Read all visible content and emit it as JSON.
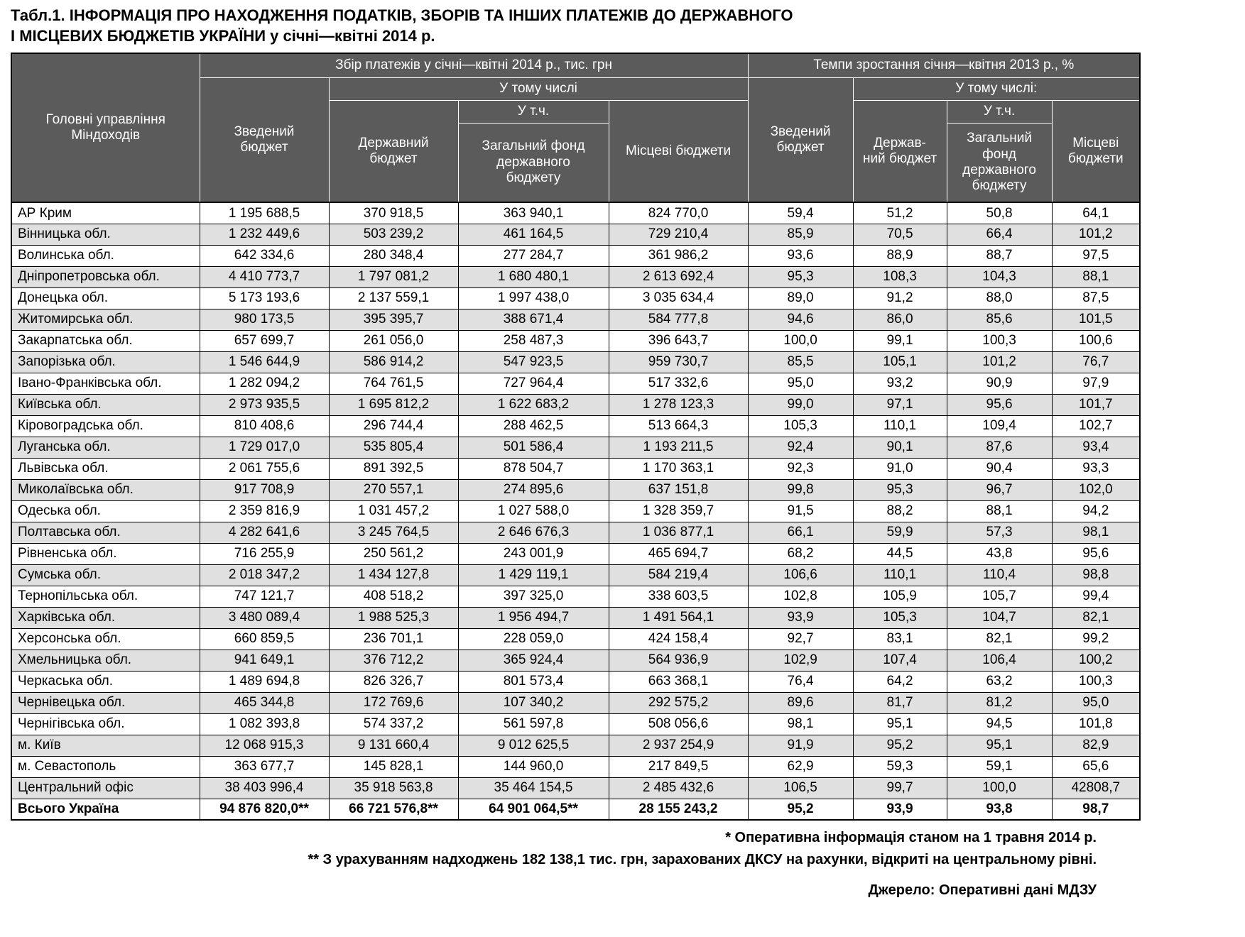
{
  "title_line1": "Табл.1. ІНФОРМАЦІЯ ПРО НАХОДЖЕННЯ ПОДАТКІВ, ЗБОРІВ ТА ІНШИХ ПЛАТЕЖІВ ДО ДЕРЖАВНОГО",
  "title_line2": "І МІСЦЕВИХ БЮДЖЕТІВ УКРАЇНИ у січні—квітні 2014 р.",
  "colors": {
    "header_bg": "#5b5b5b",
    "stripe": "#e0e0e0",
    "grid": "#000000"
  },
  "table": {
    "header": {
      "departments": "Головні управління\nМіндоходів",
      "group_collection": "Збір платежів у січні—квітні 2014 р., тис. грн",
      "group_growth": "Темпи зростання січня—квітня 2013 р., %",
      "consolidated1": "Зведений\nбюджет",
      "including1": "У тому числі",
      "state1": "Державний\nбюджет",
      "incl1": "У т.ч.",
      "general_fund1": "Загальний фонд\nдержавного\nбюджету",
      "local1": "Місцеві бюджети",
      "consolidated2": "Зведений\nбюджет",
      "including2": "У тому числі:",
      "state2": "Держав-\nний бюджет",
      "incl2": "У т.ч.",
      "general_fund2": "Загальний\nфонд\nдержавного\nбюджету",
      "local2": "Місцеві\nбюджети"
    },
    "rows": [
      {
        "region": "АР Крим",
        "values": [
          "1 195 688,5",
          "370 918,5",
          "363 940,1",
          "824 770,0",
          "59,4",
          "51,2",
          "50,8",
          "64,1"
        ]
      },
      {
        "region": "Вінницька обл.",
        "values": [
          "1 232 449,6",
          "503 239,2",
          "461 164,5",
          "729 210,4",
          "85,9",
          "70,5",
          "66,4",
          "101,2"
        ]
      },
      {
        "region": "Волинська обл.",
        "values": [
          "642 334,6",
          "280 348,4",
          "277 284,7",
          "361 986,2",
          "93,6",
          "88,9",
          "88,7",
          "97,5"
        ]
      },
      {
        "region": "Дніпропетровська обл.",
        "values": [
          "4 410 773,7",
          "1 797 081,2",
          "1 680 480,1",
          "2 613 692,4",
          "95,3",
          "108,3",
          "104,3",
          "88,1"
        ]
      },
      {
        "region": "Донецька обл.",
        "values": [
          "5 173 193,6",
          "2 137 559,1",
          "1 997 438,0",
          "3 035 634,4",
          "89,0",
          "91,2",
          "88,0",
          "87,5"
        ]
      },
      {
        "region": "Житомирська обл.",
        "values": [
          "980 173,5",
          "395 395,7",
          "388 671,4",
          "584 777,8",
          "94,6",
          "86,0",
          "85,6",
          "101,5"
        ]
      },
      {
        "region": "Закарпатська обл.",
        "values": [
          "657 699,7",
          "261 056,0",
          "258 487,3",
          "396 643,7",
          "100,0",
          "99,1",
          "100,3",
          "100,6"
        ]
      },
      {
        "region": "Запорізька обл.",
        "values": [
          "1 546 644,9",
          "586 914,2",
          "547 923,5",
          "959 730,7",
          "85,5",
          "105,1",
          "101,2",
          "76,7"
        ]
      },
      {
        "region": "Івано-Франківська обл.",
        "values": [
          "1 282 094,2",
          "764 761,5",
          "727 964,4",
          "517 332,6",
          "95,0",
          "93,2",
          "90,9",
          "97,9"
        ]
      },
      {
        "region": "Київська обл.",
        "values": [
          "2 973 935,5",
          "1 695 812,2",
          "1 622 683,2",
          "1 278 123,3",
          "99,0",
          "97,1",
          "95,6",
          "101,7"
        ]
      },
      {
        "region": "Кіровоградська обл.",
        "values": [
          "810 408,6",
          "296 744,4",
          "288 462,5",
          "513 664,3",
          "105,3",
          "110,1",
          "109,4",
          "102,7"
        ]
      },
      {
        "region": "Луганська обл.",
        "values": [
          "1 729 017,0",
          "535 805,4",
          "501 586,4",
          "1 193 211,5",
          "92,4",
          "90,1",
          "87,6",
          "93,4"
        ]
      },
      {
        "region": "Львівська обл.",
        "values": [
          "2 061 755,6",
          "891 392,5",
          "878 504,7",
          "1 170 363,1",
          "92,3",
          "91,0",
          "90,4",
          "93,3"
        ]
      },
      {
        "region": "Миколаївська обл.",
        "values": [
          "917 708,9",
          "270 557,1",
          "274 895,6",
          "637 151,8",
          "99,8",
          "95,3",
          "96,7",
          "102,0"
        ]
      },
      {
        "region": "Одеська обл.",
        "values": [
          "2 359 816,9",
          "1 031 457,2",
          "1 027 588,0",
          "1 328 359,7",
          "91,5",
          "88,2",
          "88,1",
          "94,2"
        ]
      },
      {
        "region": "Полтавська обл.",
        "values": [
          "4 282 641,6",
          "3 245 764,5",
          "2 646 676,3",
          "1 036 877,1",
          "66,1",
          "59,9",
          "57,3",
          "98,1"
        ]
      },
      {
        "region": "Рівненська обл.",
        "values": [
          "716 255,9",
          "250 561,2",
          "243 001,9",
          "465 694,7",
          "68,2",
          "44,5",
          "43,8",
          "95,6"
        ]
      },
      {
        "region": "Сумська обл.",
        "values": [
          "2 018 347,2",
          "1 434 127,8",
          "1 429 119,1",
          "584 219,4",
          "106,6",
          "110,1",
          "110,4",
          "98,8"
        ]
      },
      {
        "region": "Тернопільська обл.",
        "values": [
          "747 121,7",
          "408 518,2",
          "397 325,0",
          "338 603,5",
          "102,8",
          "105,9",
          "105,7",
          "99,4"
        ]
      },
      {
        "region": "Харківська обл.",
        "values": [
          "3 480 089,4",
          "1 988 525,3",
          "1 956 494,7",
          "1 491 564,1",
          "93,9",
          "105,3",
          "104,7",
          "82,1"
        ]
      },
      {
        "region": "Херсонська обл.",
        "values": [
          "660 859,5",
          "236 701,1",
          "228 059,0",
          "424 158,4",
          "92,7",
          "83,1",
          "82,1",
          "99,2"
        ]
      },
      {
        "region": "Хмельницька обл.",
        "values": [
          "941 649,1",
          "376 712,2",
          "365 924,4",
          "564 936,9",
          "102,9",
          "107,4",
          "106,4",
          "100,2"
        ]
      },
      {
        "region": "Черкаська обл.",
        "values": [
          "1 489 694,8",
          "826 326,7",
          "801 573,4",
          "663 368,1",
          "76,4",
          "64,2",
          "63,2",
          "100,3"
        ]
      },
      {
        "region": "Чернівецька обл.",
        "values": [
          "465 344,8",
          "172 769,6",
          "107 340,2",
          "292 575,2",
          "89,6",
          "81,7",
          "81,2",
          "95,0"
        ]
      },
      {
        "region": "Чернігівська обл.",
        "values": [
          "1 082 393,8",
          "574 337,2",
          "561 597,8",
          "508 056,6",
          "98,1",
          "95,1",
          "94,5",
          "101,8"
        ]
      },
      {
        "region": "м. Київ",
        "values": [
          "12 068 915,3",
          "9 131 660,4",
          "9 012 625,5",
          "2 937 254,9",
          "91,9",
          "95,2",
          "95,1",
          "82,9"
        ]
      },
      {
        "region": "м. Севастополь",
        "values": [
          "363 677,7",
          "145 828,1",
          "144 960,0",
          "217 849,5",
          "62,9",
          "59,3",
          "59,1",
          "65,6"
        ]
      },
      {
        "region": "Центральний офіс",
        "values": [
          "38 403 996,4",
          "35 918 563,8",
          "35 464 154,5",
          "2 485 432,6",
          "106,5",
          "99,7",
          "100,0",
          "42808,7"
        ]
      },
      {
        "region": "Всього Україна",
        "bold": true,
        "values": [
          "94 876 820,0**",
          "66 721 576,8**",
          "64 901 064,5**",
          "28 155 243,2",
          "95,2",
          "93,9",
          "93,8",
          "98,7"
        ]
      }
    ]
  },
  "footnotes": [
    "* Оперативна інформація станом на 1 травня 2014 р.",
    "** З урахуванням надходжень 182 138,1 тис. грн, зарахованих ДКСУ на рахунки, відкриті на центральному рівні."
  ],
  "source": "Джерело: Оперативні дані МДЗУ"
}
